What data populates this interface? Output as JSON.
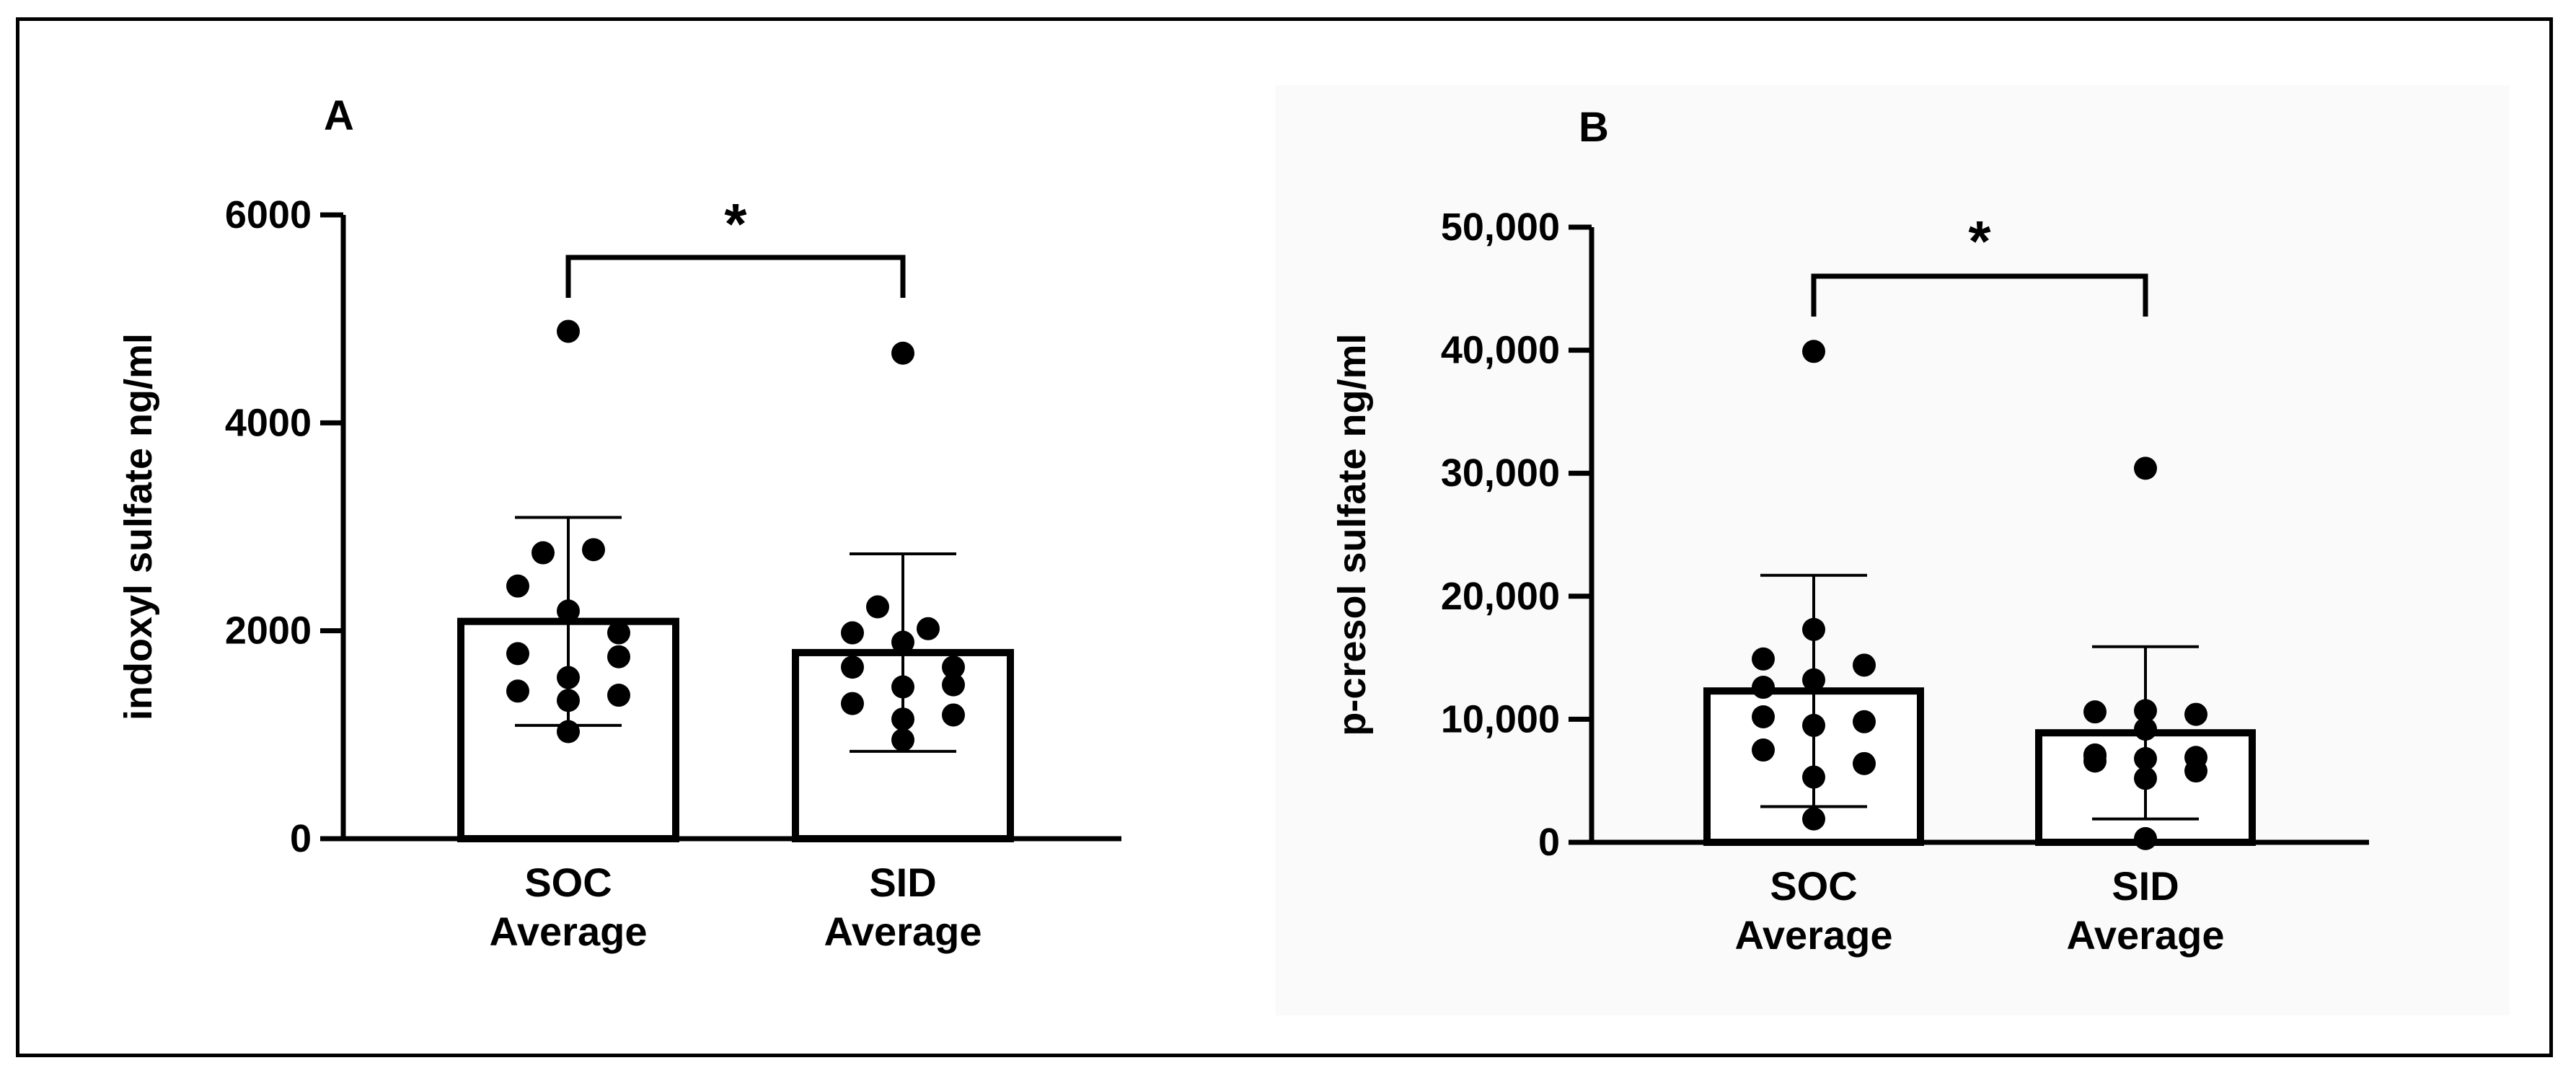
{
  "chart_data": [
    {
      "type": "bar",
      "panel_label": "A",
      "categories": [
        [
          "SOC",
          "Average"
        ],
        [
          "SID",
          "Average"
        ]
      ],
      "means": [
        2090,
        1790
      ],
      "sd": [
        1000,
        950
      ],
      "ylabel": "indoxyl sulfate ng/ml",
      "ylim": [
        0,
        6000
      ],
      "ticks": [
        0,
        2000,
        4000,
        6000
      ],
      "tick_labels": [
        "0",
        "2000",
        "4000",
        "6000"
      ],
      "significance": "*",
      "points": [
        [
          4880,
          2750,
          2780,
          2430,
          2190,
          1980,
          1780,
          1750,
          1550,
          1420,
          1380,
          1330,
          1030
        ],
        [
          4670,
          2230,
          2020,
          1980,
          1890,
          1650,
          1650,
          1480,
          1460,
          1300,
          1190,
          1150,
          950
        ]
      ]
    },
    {
      "type": "bar",
      "panel_label": "B",
      "categories": [
        [
          "SOC",
          "Average"
        ],
        [
          "SID",
          "Average"
        ]
      ],
      "means": [
        12300,
        8900
      ],
      "sd": [
        9400,
        7000
      ],
      "ylabel": "p-cresol sulfate ng/ml",
      "ylim": [
        0,
        50000
      ],
      "ticks": [
        0,
        10000,
        20000,
        30000,
        40000,
        50000
      ],
      "tick_labels": [
        "0",
        "10,000",
        "20,000",
        "30,000",
        "40,000",
        "50,000"
      ],
      "significance": "*",
      "points": [
        [
          39900,
          17300,
          14900,
          14400,
          13200,
          12600,
          10200,
          9800,
          9500,
          7500,
          6400,
          5300,
          1900
        ],
        [
          30400,
          10700,
          10600,
          10400,
          9200,
          7100,
          7000,
          6900,
          6800,
          6600,
          5800,
          5200,
          300
        ]
      ]
    }
  ]
}
